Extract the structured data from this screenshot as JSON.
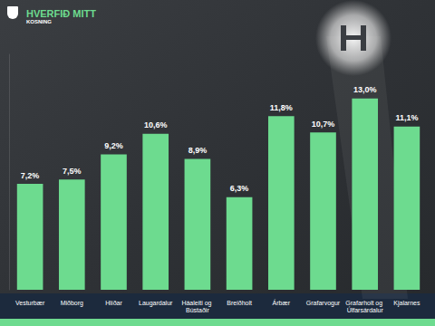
{
  "chart_data": {
    "type": "bar",
    "title": "HVERFIÐ MITT",
    "subtitle": "KOSNING",
    "categories": [
      "Vesturbær",
      "Miðborg",
      "Hlíðar",
      "Laugardalur",
      "Háaleiti og Bústaðir",
      "Breiðholt",
      "Árbær",
      "Grafarvogur",
      "Grafarholt og Úlfarsárdalur",
      "Kjalarnes"
    ],
    "values": [
      7.2,
      7.5,
      9.2,
      10.6,
      8.9,
      6.3,
      11.8,
      10.7,
      13.0,
      11.1
    ],
    "value_labels": [
      "7,2%",
      "7,5%",
      "9,2%",
      "10,6%",
      "8,9%",
      "6,3%",
      "11,8%",
      "10,7%",
      "13,0%",
      "11,1%"
    ],
    "color": "#6ddb8f",
    "ylim": [
      0,
      16
    ],
    "grid": false,
    "data_labels": true,
    "tick_labels": "x"
  }
}
